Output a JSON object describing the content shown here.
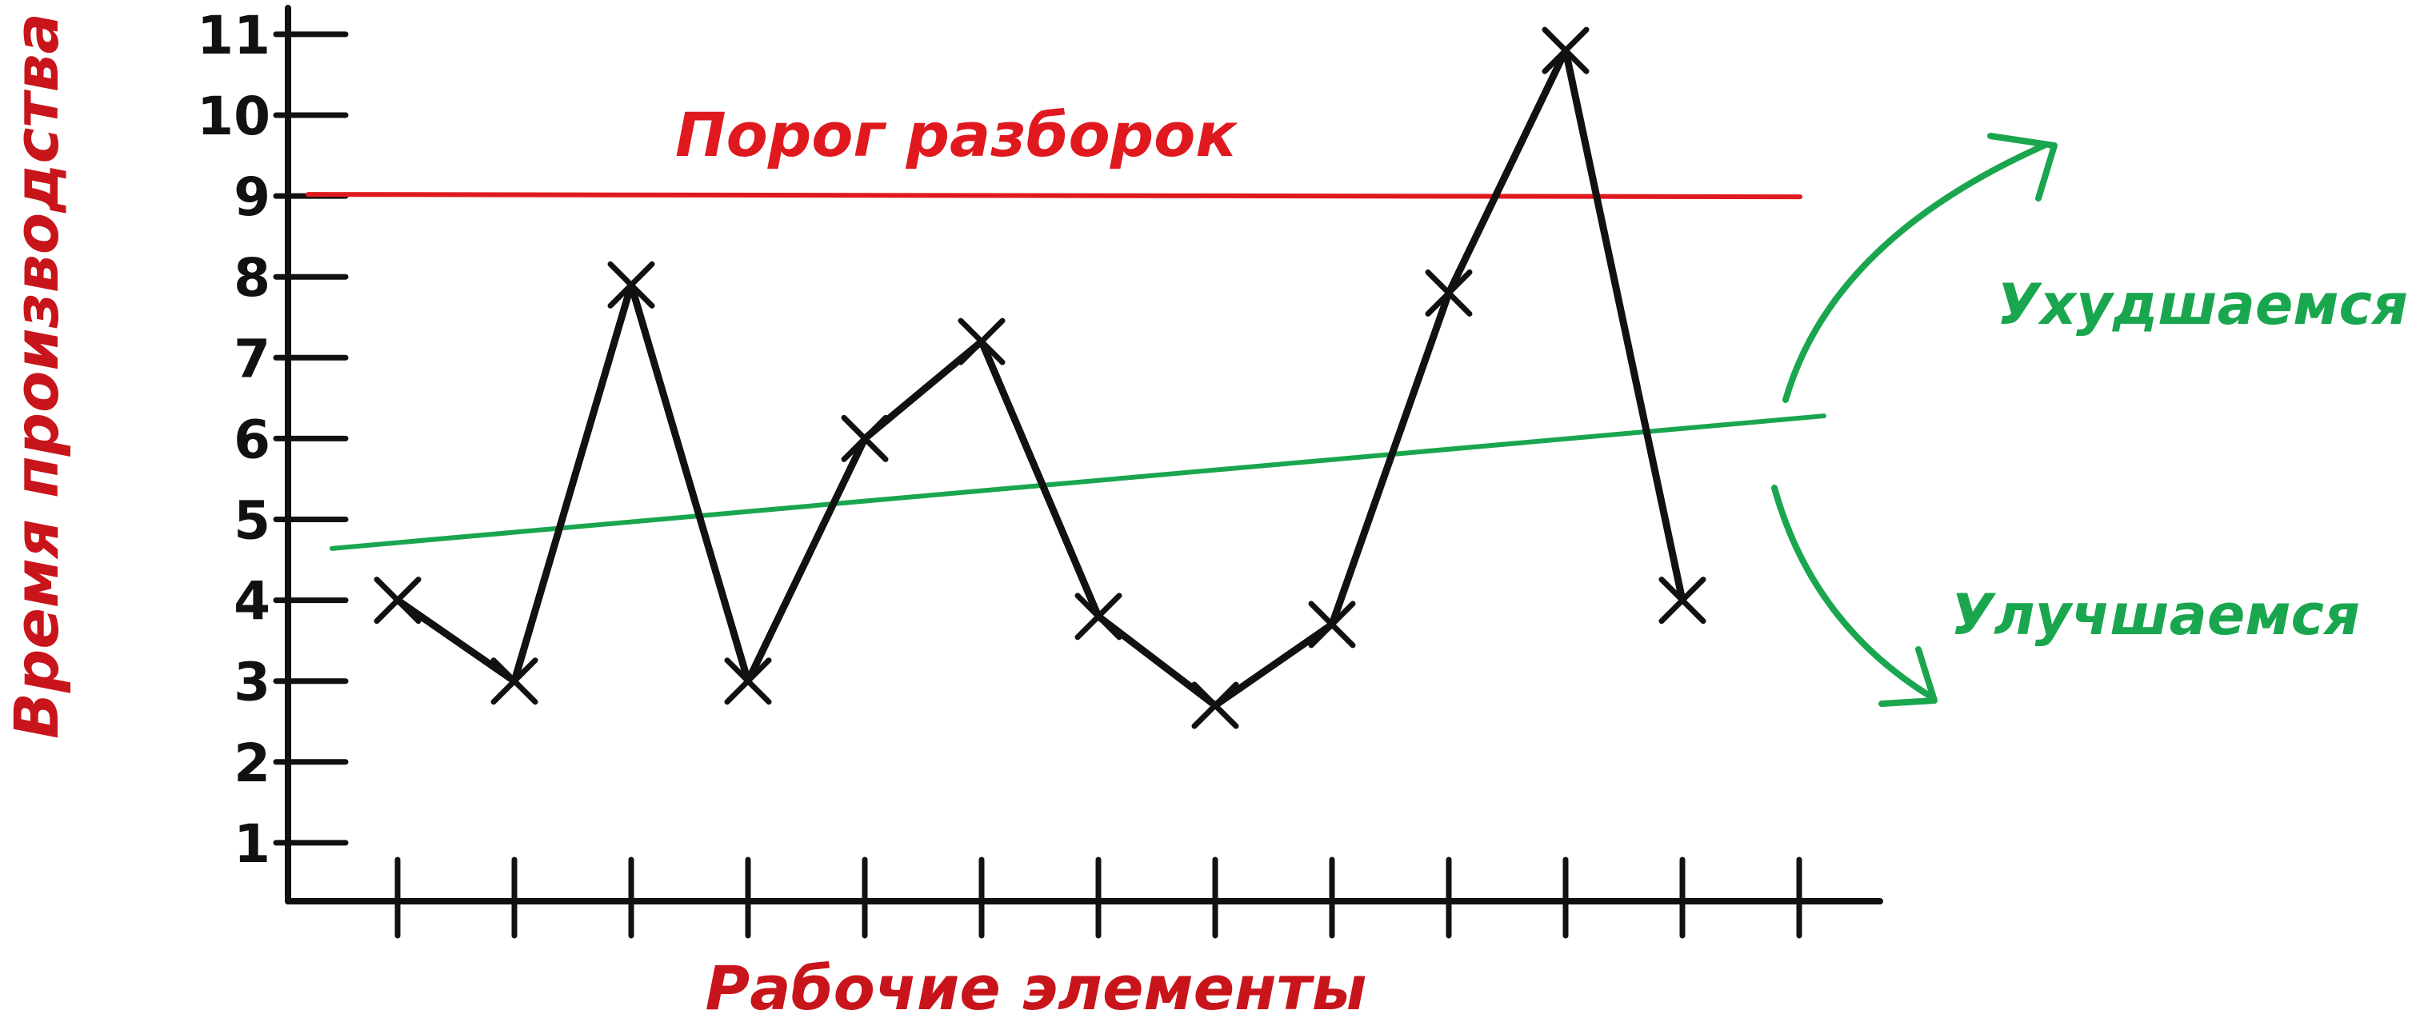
{
  "chart_data": {
    "type": "line",
    "xlabel": "Рабочие элементы",
    "ylabel": "Время производства",
    "ylim": [
      0,
      11
    ],
    "yticks": [
      1,
      2,
      3,
      4,
      5,
      6,
      7,
      8,
      9,
      10,
      11
    ],
    "x_tick_count": 12,
    "series": [
      {
        "values": [
          {
            "x": 1,
            "y": 4
          },
          {
            "x": 2,
            "y": 3
          },
          {
            "x": 3,
            "y": 7.9
          },
          {
            "x": 4,
            "y": 3
          },
          {
            "x": 5,
            "y": 6
          },
          {
            "x": 6,
            "y": 7.2
          },
          {
            "x": 7,
            "y": 3.8
          },
          {
            "x": 8,
            "y": 2.7
          },
          {
            "x": 9,
            "y": 3.7
          },
          {
            "x": 10,
            "y": 7.8
          },
          {
            "x": 11,
            "y": 10.8
          },
          {
            "x": 12,
            "y": 4
          }
        ],
        "color": "#111111"
      }
    ],
    "threshold": {
      "label": "Порог разборок",
      "y": 9,
      "color": "#e0191f"
    },
    "trend": {
      "y_start": 4.7,
      "y_end": 6.3,
      "color": "#19a64e"
    },
    "annotations": {
      "worse": "Ухудшаемся",
      "better": "Улучшаемся"
    },
    "grid": false
  }
}
